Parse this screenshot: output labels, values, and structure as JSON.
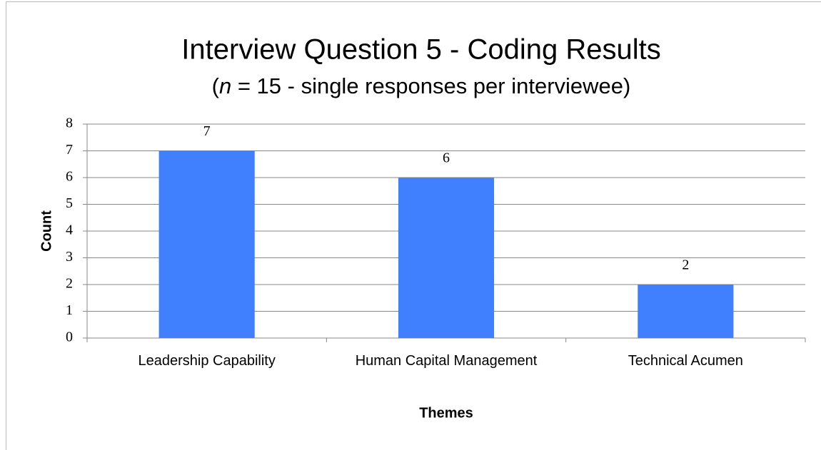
{
  "chart_data": {
    "type": "bar",
    "title": "Interview Question 5 - Coding Results",
    "subtitle": [
      "(",
      "n",
      " = 15 - single responses per interviewee)"
    ],
    "categories": [
      "Leadership Capability",
      "Human Capital Management",
      "Technical Acumen"
    ],
    "values": [
      7,
      6,
      2
    ],
    "color": "#4080ff",
    "xlabel": "Themes",
    "ylabel": "Count",
    "ylim": [
      0,
      8
    ],
    "yticks": [
      0,
      1,
      2,
      3,
      4,
      5,
      6,
      7,
      8
    ],
    "grid": true
  }
}
